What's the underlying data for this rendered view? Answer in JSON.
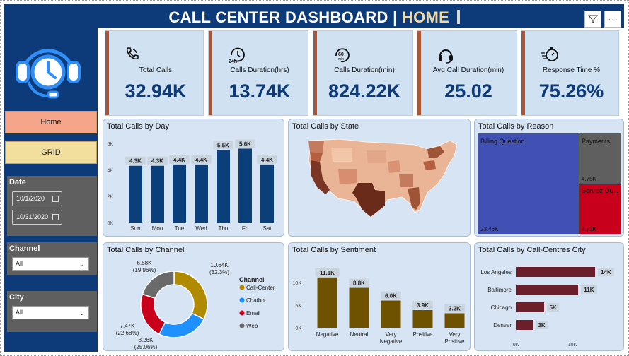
{
  "header": {
    "title_main": "CALL CENTER DASHBOARD |",
    "title_highlight": "HOME",
    "filter_icon": "filter-icon",
    "more_label": "···"
  },
  "sidebar": {
    "logo_icon": "headset-clock-icon",
    "home_label": "Home",
    "grid_label": "GRID",
    "date": {
      "label": "Date",
      "start": "10/1/2020",
      "end": "10/31/2020"
    },
    "channel": {
      "label": "Channel",
      "selected": "All"
    },
    "city": {
      "label": "City",
      "selected": "All"
    }
  },
  "kpis": [
    {
      "label": "Total Calls",
      "value": "32.94K",
      "icon": "phone-icon"
    },
    {
      "label": "Calls Duration(hrs)",
      "value": "13.74K",
      "icon": "clock-24h-icon"
    },
    {
      "label": "Calls Duration(min)",
      "value": "824.22K",
      "icon": "clock-60min-icon"
    },
    {
      "label": "Avg Call Duration(min)",
      "value": "25.02",
      "icon": "headset-icon"
    },
    {
      "label": "Response Time %",
      "value": "75.26%",
      "icon": "stopwatch-icon"
    }
  ],
  "cards": {
    "by_day": "Total Calls by Day",
    "by_state": "Total Calls by State",
    "by_reason": "Total Calls by Reason",
    "by_channel": "Total Calls by Channel",
    "by_sentiment": "Total Calls by Sentiment",
    "by_city": "Total Calls by Call-Centres City"
  },
  "colors": {
    "navy": "#0d3b7a",
    "bar_blue": "#0a3f7a",
    "sentiment": "#6e5200",
    "city_bar": "#6b1f2a",
    "reason_billing": "#4150b5",
    "reason_payments": "#5f5f5f",
    "reason_service": "#c8001b",
    "kpi_accent": "#b0532f"
  },
  "chart_data": [
    {
      "type": "bar",
      "title": "Total Calls by Day",
      "categories": [
        "Sun",
        "Mon",
        "Tue",
        "Wed",
        "Thu",
        "Fri",
        "Sat"
      ],
      "values": [
        4300,
        4300,
        4400,
        4400,
        5500,
        5600,
        4400
      ],
      "data_labels": [
        "4.3K",
        "4.3K",
        "4.4K",
        "4.4K",
        "5.5K",
        "5.6K",
        "4.4K"
      ],
      "yticks": [
        "0K",
        "2K",
        "4K",
        "6K"
      ],
      "ylim": [
        0,
        6000
      ],
      "color": "#0a3f7a"
    },
    {
      "type": "map",
      "title": "Total Calls by State"
    },
    {
      "type": "treemap",
      "title": "Total Calls by Reason",
      "items": [
        {
          "name": "Billing Question",
          "value": 23460,
          "label": "23.46K",
          "color": "#4150b5"
        },
        {
          "name": "Payments",
          "value": 4750,
          "label": "4.75K",
          "color": "#5f5f5f"
        },
        {
          "name": "Service Ou...",
          "value": 4730,
          "label": "4.73K",
          "color": "#c8001b"
        }
      ]
    },
    {
      "type": "pie",
      "title": "Total Calls by Channel",
      "legend_title": "Channel",
      "slices": [
        {
          "name": "Call-Center",
          "value": 10640,
          "label": "10.64K",
          "pct": "(32.3%)",
          "color": "#b08a00"
        },
        {
          "name": "Chatbot",
          "value": 8260,
          "label": "8.26K",
          "pct": "(25.06%)",
          "color": "#1e90ff"
        },
        {
          "name": "Email",
          "value": 7470,
          "label": "7.47K",
          "pct": "(22.68%)",
          "color": "#c8001b"
        },
        {
          "name": "Web",
          "value": 6580,
          "label": "6.58K",
          "pct": "(19.96%)",
          "color": "#6a6a6a"
        }
      ]
    },
    {
      "type": "bar",
      "title": "Total Calls by Sentiment",
      "categories": [
        "Negative",
        "Neutral",
        "Very Negative",
        "Positive",
        "Very Positive"
      ],
      "values": [
        11100,
        8800,
        6000,
        3900,
        3200
      ],
      "data_labels": [
        "11.1K",
        "8.8K",
        "6.0K",
        "3.9K",
        "3.2K"
      ],
      "yticks": [
        "0K",
        "5K",
        "10K"
      ],
      "ylim": [
        0,
        12000
      ],
      "color": "#6e5200"
    },
    {
      "type": "bar",
      "orientation": "horizontal",
      "title": "Total Calls by Call-Centres City",
      "categories": [
        "Los Angeles",
        "Baltimore",
        "Chicago",
        "Denver"
      ],
      "values": [
        14000,
        11000,
        5000,
        3000
      ],
      "data_labels": [
        "14K",
        "11K",
        "5K",
        "3K"
      ],
      "xticks": [
        "0K",
        "10K"
      ],
      "xlim": [
        0,
        17000
      ],
      "color": "#6b1f2a"
    }
  ]
}
